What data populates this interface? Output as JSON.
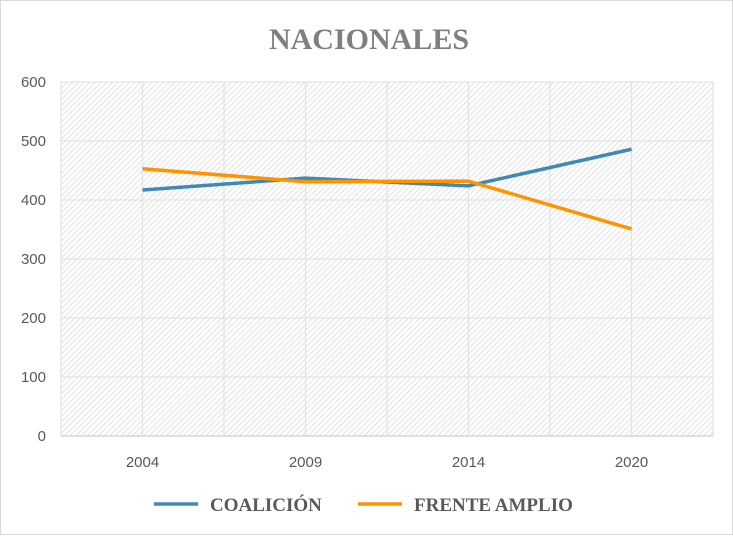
{
  "chart_data": {
    "type": "line",
    "title": "NACIONALES",
    "categories": [
      "2004",
      "2009",
      "2014",
      "2020"
    ],
    "series": [
      {
        "name": "COALICIÓN",
        "color": "#3f8ab5",
        "values": [
          417,
          437,
          424,
          486
        ]
      },
      {
        "name": "FRENTE AMPLIO",
        "color": "#ff9300",
        "values": [
          453,
          431,
          432,
          351
        ]
      }
    ],
    "ylim": [
      0,
      600
    ],
    "yticks": [
      "0",
      "100",
      "200",
      "300",
      "400",
      "500",
      "600"
    ],
    "grid": true,
    "legend": "bottom",
    "xlabel": "",
    "ylabel": ""
  }
}
